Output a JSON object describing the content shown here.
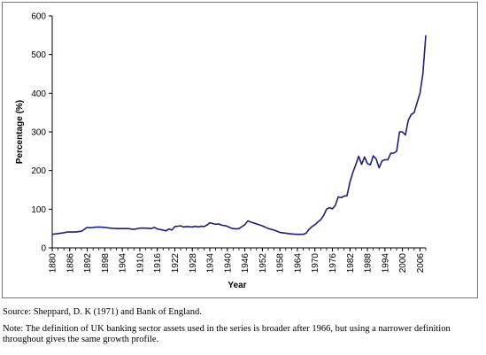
{
  "chart_data": {
    "type": "line",
    "title": "",
    "xlabel": "Year",
    "ylabel": "Percentage (%)",
    "ylim": [
      0,
      600
    ],
    "yticks": [
      "0",
      "100",
      "200",
      "300",
      "400",
      "500",
      "600"
    ],
    "xlim": [
      1880,
      2008
    ],
    "xticks": [
      "1880",
      "1886",
      "1892",
      "1898",
      "1904",
      "1910",
      "1916",
      "1922",
      "1928",
      "1934",
      "1940",
      "1946",
      "1952",
      "1958",
      "1964",
      "1970",
      "1976",
      "1982",
      "1988",
      "1994",
      "2000",
      "2006"
    ],
    "grid": false,
    "legend": "none",
    "line_color": "#1f1f7a",
    "series": [
      {
        "x": [
          1880,
          1882,
          1884,
          1885,
          1886,
          1888,
          1890,
          1892,
          1893,
          1894,
          1896,
          1898,
          1900,
          1902,
          1904,
          1906,
          1908,
          1910,
          1912,
          1914,
          1915,
          1916,
          1918,
          1919,
          1920,
          1921,
          1922,
          1924,
          1925,
          1926,
          1928,
          1929,
          1930,
          1931,
          1932,
          1933,
          1934,
          1935,
          1936,
          1937,
          1938,
          1940,
          1941,
          1942,
          1943,
          1944,
          1945,
          1946,
          1947,
          1948,
          1950,
          1952,
          1954,
          1956,
          1958,
          1960,
          1962,
          1964,
          1966,
          1967,
          1968,
          1969,
          1970,
          1971,
          1972,
          1973,
          1974,
          1975,
          1976,
          1977,
          1978,
          1979,
          1980,
          1981,
          1982,
          1983,
          1984,
          1985,
          1986,
          1987,
          1988,
          1989,
          1990,
          1991,
          1992,
          1993,
          1994,
          1995,
          1996,
          1997,
          1998,
          1999,
          2000,
          2001,
          2002,
          2003,
          2004,
          2005,
          2006,
          2007,
          2008
        ],
        "y": [
          35,
          37,
          39,
          41,
          41,
          41,
          43,
          53,
          52,
          53,
          54,
          53,
          51,
          50,
          50,
          50,
          48,
          51,
          51,
          50,
          53,
          49,
          46,
          44,
          49,
          46,
          55,
          57,
          54,
          55,
          54,
          56,
          54,
          56,
          55,
          59,
          65,
          63,
          61,
          62,
          59,
          56,
          52,
          50,
          49,
          50,
          55,
          60,
          70,
          67,
          62,
          57,
          50,
          46,
          40,
          38,
          36,
          35,
          35,
          38,
          48,
          55,
          60,
          67,
          73,
          84,
          100,
          104,
          101,
          110,
          132,
          130,
          134,
          135,
          170,
          195,
          215,
          237,
          216,
          235,
          218,
          215,
          238,
          230,
          207,
          225,
          228,
          228,
          245,
          245,
          250,
          300,
          300,
          292,
          330,
          345,
          350,
          375,
          400,
          450,
          550
        ]
      }
    ]
  },
  "footer": {
    "source": "Source: Sheppard, D. K (1971) and Bank of England.",
    "note_line1": "Note:  The definition of UK banking sector assets used in the series is broader after 1966, but using a narrower definition",
    "note_line2": "throughout gives the same growth profile."
  }
}
